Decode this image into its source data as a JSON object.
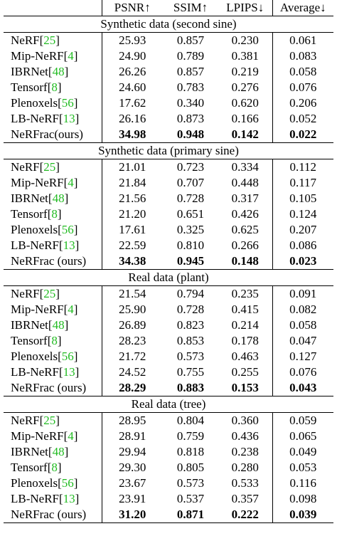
{
  "headers": [
    "",
    "PSNR↑",
    "SSIM↑",
    "LPIPS↓",
    "Average↓"
  ],
  "sections": [
    {
      "title": "Synthetic data (second sine)",
      "rows": [
        {
          "name": "NeRF",
          "ref": "25",
          "vals": [
            "25.93",
            "0.857",
            "0.230",
            "0.061"
          ],
          "bold": false
        },
        {
          "name": "Mip-NeRF",
          "ref": "4",
          "vals": [
            "24.90",
            "0.789",
            "0.381",
            "0.083"
          ],
          "bold": false
        },
        {
          "name": "IBRNet",
          "ref": "48",
          "vals": [
            "26.26",
            "0.857",
            "0.219",
            "0.058"
          ],
          "bold": false
        },
        {
          "name": "Tensorf",
          "ref": "8",
          "vals": [
            "24.60",
            "0.783",
            "0.276",
            "0.076"
          ],
          "bold": false
        },
        {
          "name": "Plenoxels",
          "ref": "56",
          "vals": [
            "17.62",
            "0.340",
            "0.620",
            "0.206"
          ],
          "bold": false
        },
        {
          "name": "LB-NeRF",
          "ref": "13",
          "vals": [
            "26.16",
            "0.873",
            "0.166",
            "0.052"
          ],
          "bold": false
        },
        {
          "name": "NeRFrac(ours)",
          "ref": "",
          "vals": [
            "34.98",
            "0.948",
            "0.142",
            "0.022"
          ],
          "bold": true
        }
      ]
    },
    {
      "title": "Synthetic data (primary sine)",
      "rows": [
        {
          "name": "NeRF",
          "ref": "25",
          "vals": [
            "21.01",
            "0.723",
            "0.334",
            "0.112"
          ],
          "bold": false
        },
        {
          "name": "Mip-NeRF",
          "ref": "4",
          "vals": [
            "21.84",
            "0.707",
            "0.448",
            "0.117"
          ],
          "bold": false
        },
        {
          "name": "IBRNet",
          "ref": "48",
          "vals": [
            "21.56",
            "0.728",
            "0.317",
            "0.105"
          ],
          "bold": false
        },
        {
          "name": "Tensorf",
          "ref": "8",
          "vals": [
            "21.20",
            "0.651",
            "0.426",
            "0.124"
          ],
          "bold": false
        },
        {
          "name": "Plenoxels",
          "ref": "56",
          "vals": [
            "17.61",
            "0.325",
            "0.625",
            "0.207"
          ],
          "bold": false
        },
        {
          "name": "LB-NeRF",
          "ref": "13",
          "vals": [
            "22.59",
            "0.810",
            "0.266",
            "0.086"
          ],
          "bold": false
        },
        {
          "name": "NeRFrac (ours)",
          "ref": "",
          "vals": [
            "34.38",
            "0.945",
            "0.148",
            "0.023"
          ],
          "bold": true
        }
      ]
    },
    {
      "title": "Real data (plant)",
      "rows": [
        {
          "name": "NeRF",
          "ref": "25",
          "vals": [
            "21.54",
            "0.794",
            "0.235",
            "0.091"
          ],
          "bold": false
        },
        {
          "name": "Mip-NeRF",
          "ref": "4",
          "vals": [
            "25.90",
            "0.728",
            "0.415",
            "0.082"
          ],
          "bold": false
        },
        {
          "name": "IBRNet",
          "ref": "48",
          "vals": [
            "26.89",
            "0.823",
            "0.214",
            "0.058"
          ],
          "bold": false
        },
        {
          "name": "Tensorf",
          "ref": "8",
          "vals": [
            "28.23",
            "0.853",
            "0.178",
            "0.047"
          ],
          "bold": false
        },
        {
          "name": "Plenoxels",
          "ref": "56",
          "vals": [
            "21.72",
            "0.573",
            "0.463",
            "0.127"
          ],
          "bold": false
        },
        {
          "name": "LB-NeRF",
          "ref": "13",
          "vals": [
            "24.52",
            "0.755",
            "0.255",
            "0.076"
          ],
          "bold": false
        },
        {
          "name": "NeRFrac (ours)",
          "ref": "",
          "vals": [
            "28.29",
            "0.883",
            "0.153",
            "0.043"
          ],
          "bold": true
        }
      ]
    },
    {
      "title": "Real data (tree)",
      "rows": [
        {
          "name": "NeRF",
          "ref": "25",
          "vals": [
            "28.95",
            "0.804",
            "0.360",
            "0.059"
          ],
          "bold": false
        },
        {
          "name": "Mip-NeRF",
          "ref": "4",
          "vals": [
            "28.91",
            "0.759",
            "0.436",
            "0.065"
          ],
          "bold": false
        },
        {
          "name": "IBRNet",
          "ref": "48",
          "vals": [
            "29.94",
            "0.818",
            "0.238",
            "0.049"
          ],
          "bold": false
        },
        {
          "name": "Tensorf",
          "ref": "8",
          "vals": [
            "29.30",
            "0.805",
            "0.280",
            "0.053"
          ],
          "bold": false
        },
        {
          "name": "Plenoxels",
          "ref": "56",
          "vals": [
            "23.67",
            "0.573",
            "0.533",
            "0.116"
          ],
          "bold": false
        },
        {
          "name": "LB-NeRF",
          "ref": "13",
          "vals": [
            "23.91",
            "0.537",
            "0.357",
            "0.098"
          ],
          "bold": false
        },
        {
          "name": "NeRFrac (ours)",
          "ref": "",
          "vals": [
            "31.20",
            "0.871",
            "0.222",
            "0.039"
          ],
          "bold": true
        }
      ]
    }
  ]
}
